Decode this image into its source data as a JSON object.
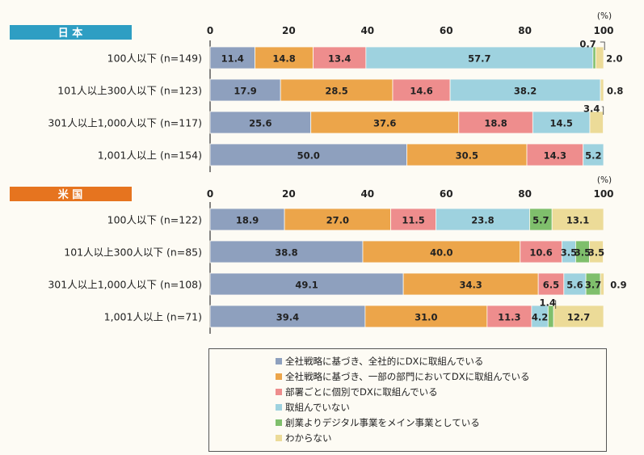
{
  "unit_label": "(%)",
  "legend": [
    {
      "label": "全社戦略に基づき、全社的にDXに取組んでいる",
      "color": "#8ea0be"
    },
    {
      "label": "全社戦略に基づき、一部の部門においてDXに取組んでいる",
      "color": "#eca54a"
    },
    {
      "label": "部署ごとに個別でDXに取組んでいる",
      "color": "#ee8d8d"
    },
    {
      "label": "取組んでいない",
      "color": "#9ed2df"
    },
    {
      "label": "創業よりデジタル事業をメイン事業としている",
      "color": "#7fbf6c"
    },
    {
      "label": "わからない",
      "color": "#ecdb98"
    }
  ],
  "chart_data": [
    {
      "type": "bar",
      "orientation": "horizontal",
      "stacked": true,
      "title": "日 本",
      "title_color": "#2e9ec3",
      "x_ticks": [
        0,
        20,
        40,
        60,
        80,
        100
      ],
      "xlim": [
        0,
        100
      ],
      "categories": [
        "100人以下 (n=149)",
        "101人以上300人以下 (n=123)",
        "301人以上1,000人以下 (n=117)",
        "1,001人以上 (n=154)"
      ],
      "values": [
        [
          "11.4",
          "14.8",
          "13.4",
          "57.7",
          "0.7",
          "2.0"
        ],
        [
          "17.9",
          "28.5",
          "14.6",
          "38.2",
          "0.0",
          "0.8"
        ],
        [
          "25.6",
          "37.6",
          "18.8",
          "14.5",
          "0.0",
          "3.4"
        ],
        [
          "50.0",
          "30.5",
          "14.3",
          "5.2",
          "0.0",
          "0.0"
        ]
      ]
    },
    {
      "type": "bar",
      "orientation": "horizontal",
      "stacked": true,
      "title": "米 国",
      "title_color": "#e6741f",
      "x_ticks": [
        0,
        20,
        40,
        60,
        80,
        100
      ],
      "xlim": [
        0,
        100
      ],
      "categories": [
        "100人以下 (n=122)",
        "101人以上300人以下 (n=85)",
        "301人以上1,000人以下 (n=108)",
        "1,001人以上 (n=71)"
      ],
      "values": [
        [
          "18.9",
          "27.0",
          "11.5",
          "23.8",
          "5.7",
          "13.1"
        ],
        [
          "38.8",
          "40.0",
          "10.6",
          "3.5",
          "3.5",
          "3.5"
        ],
        [
          "49.1",
          "34.3",
          "6.5",
          "5.6",
          "3.7",
          "0.9"
        ],
        [
          "39.4",
          "31.0",
          "11.3",
          "4.2",
          "1.4",
          "12.7"
        ]
      ]
    }
  ]
}
